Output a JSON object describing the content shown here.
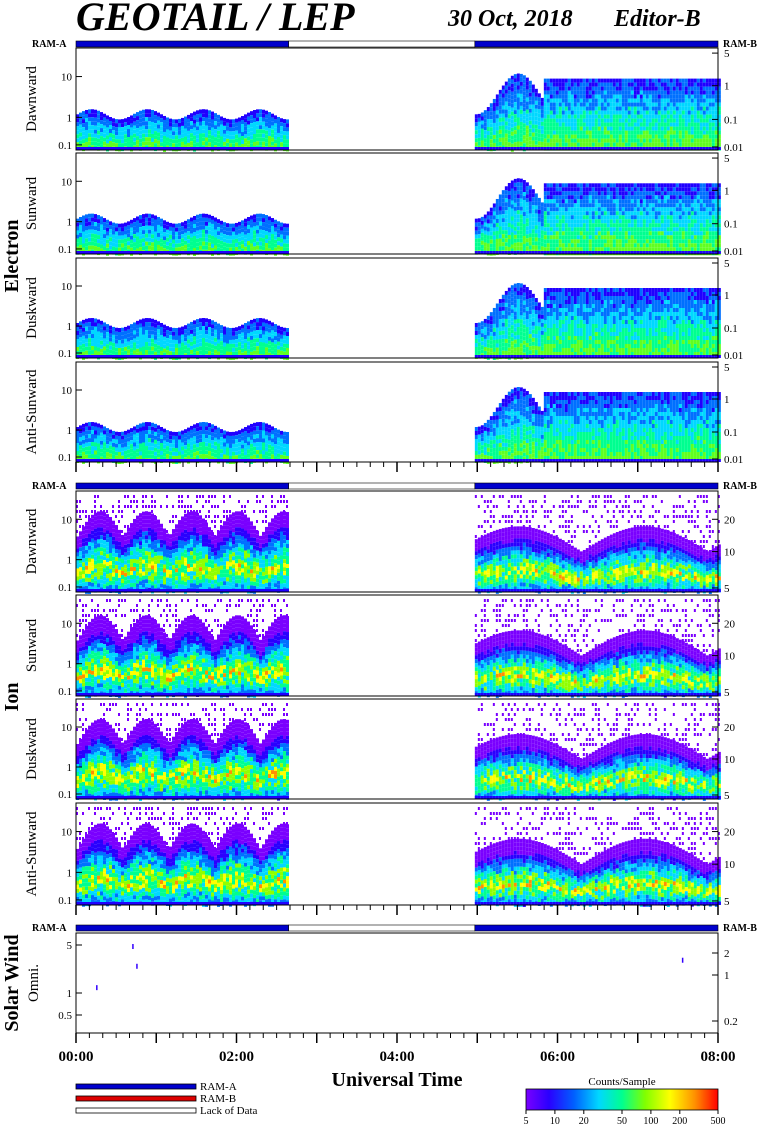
{
  "header": {
    "title": "GEOTAIL / LEP",
    "date": "30 Oct, 2018",
    "editor": "Editor-B"
  },
  "ram": {
    "a": "RAM-A",
    "b": "RAM-B"
  },
  "groups": {
    "electron": "Electron",
    "ion": "Ion",
    "solar": "Solar Wind"
  },
  "colors": {
    "ram_a": "#0000cc",
    "ram_b": "#dd0000",
    "lack": "#ffffff",
    "colorscale": [
      "#7a00ff",
      "#3300ff",
      "#0050ff",
      "#00c8ff",
      "#00ff80",
      "#7dff00",
      "#ffff00",
      "#ff9000",
      "#ff0000"
    ]
  },
  "chart_data": [
    {
      "type": "heatmap",
      "name": "Dawnward",
      "species": "electron",
      "ylabel": "Dawnward",
      "left_ticks": [
        "10",
        "1",
        "0.1"
      ],
      "right_ticks": [
        "5",
        "1",
        "0.1",
        "0.01"
      ],
      "data_segments": [
        [
          0.0,
          2.65
        ],
        [
          4.97,
          8.0
        ]
      ]
    },
    {
      "type": "heatmap",
      "name": "Sunward",
      "species": "electron",
      "ylabel": "Sunward",
      "left_ticks": [
        "10",
        "1",
        "0.1"
      ],
      "right_ticks": [
        "5",
        "1",
        "0.1",
        "0.01"
      ],
      "data_segments": [
        [
          0.0,
          2.65
        ],
        [
          4.97,
          8.0
        ]
      ]
    },
    {
      "type": "heatmap",
      "name": "Duskward",
      "species": "electron",
      "ylabel": "Duskward",
      "left_ticks": [
        "10",
        "1",
        "0.1"
      ],
      "right_ticks": [
        "5",
        "1",
        "0.1",
        "0.01"
      ],
      "data_segments": [
        [
          0.0,
          2.65
        ],
        [
          4.97,
          8.0
        ]
      ]
    },
    {
      "type": "heatmap",
      "name": "Anti-Sunward",
      "species": "electron",
      "ylabel": "Anti-Sunward",
      "left_ticks": [
        "10",
        "1",
        "0.1"
      ],
      "right_ticks": [
        "5",
        "1",
        "0.1",
        "0.01"
      ],
      "data_segments": [
        [
          0.0,
          2.65
        ],
        [
          4.97,
          8.0
        ]
      ]
    },
    {
      "type": "heatmap",
      "name": "Dawnward",
      "species": "ion",
      "ylabel": "Dawnward",
      "left_ticks": [
        "10",
        "1",
        "0.1"
      ],
      "right_ticks": [
        "20",
        "10",
        "5"
      ],
      "data_segments": [
        [
          0.0,
          2.65
        ],
        [
          4.97,
          8.0
        ]
      ]
    },
    {
      "type": "heatmap",
      "name": "Sunward",
      "species": "ion",
      "ylabel": "Sunward",
      "left_ticks": [
        "10",
        "1",
        "0.1"
      ],
      "right_ticks": [
        "20",
        "10",
        "5"
      ],
      "data_segments": [
        [
          0.0,
          2.65
        ],
        [
          4.97,
          8.0
        ]
      ]
    },
    {
      "type": "heatmap",
      "name": "Duskward",
      "species": "ion",
      "ylabel": "Duskward",
      "left_ticks": [
        "10",
        "1",
        "0.1"
      ],
      "right_ticks": [
        "20",
        "10",
        "5"
      ],
      "data_segments": [
        [
          0.0,
          2.65
        ],
        [
          4.97,
          8.0
        ]
      ]
    },
    {
      "type": "heatmap",
      "name": "Anti-Sunward",
      "species": "ion",
      "ylabel": "Anti-Sunward",
      "left_ticks": [
        "10",
        "1",
        "0.1"
      ],
      "right_ticks": [
        "20",
        "10",
        "5"
      ],
      "data_segments": [
        [
          0.0,
          2.65
        ],
        [
          4.97,
          8.0
        ]
      ]
    },
    {
      "type": "scatter",
      "name": "Omni.",
      "species": "solar",
      "ylabel": "Omni.",
      "left_ticks": [
        "5",
        "1",
        "0.5"
      ],
      "right_ticks": [
        "2",
        "1",
        "0.2"
      ],
      "x": [
        0.25,
        0.7,
        0.75,
        7.55
      ],
      "y": [
        1.3,
        6.5,
        3.0,
        3.8
      ]
    }
  ],
  "ram_segments": [
    {
      "from": 0.0,
      "to": 2.65,
      "status": "ram_a"
    },
    {
      "from": 2.65,
      "to": 4.97,
      "status": "lack"
    },
    {
      "from": 4.97,
      "to": 8.0,
      "status": "ram_a"
    }
  ],
  "xaxis": {
    "title": "Universal Time",
    "tick_labels": [
      "00:00",
      "02:00",
      "04:00",
      "06:00",
      "08:00"
    ],
    "range": [
      0,
      8
    ]
  },
  "legend": {
    "items": [
      {
        "label": "RAM-A",
        "color": "#0000cc"
      },
      {
        "label": "RAM-B",
        "color": "#dd0000"
      },
      {
        "label": "Lack of Data",
        "color": "#ffffff"
      }
    ]
  },
  "colorbar": {
    "title": "Counts/Sample",
    "tick_labels": [
      "5",
      "10",
      "20",
      "50",
      "100",
      "200",
      "500"
    ]
  }
}
